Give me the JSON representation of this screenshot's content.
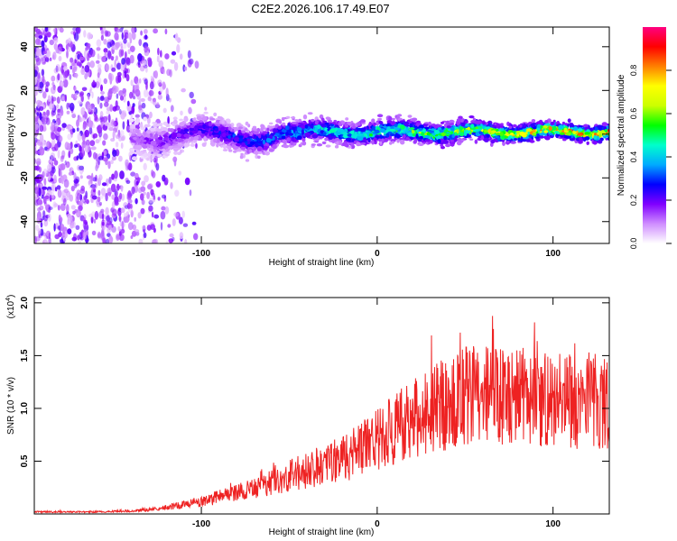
{
  "chart_data": [
    {
      "type": "heatmap",
      "title": "C2E2.2026.106.17.49.E07",
      "xlabel": "Height of straight line (km)",
      "ylabel": "Frequency (Hz)",
      "xlim": [
        -195,
        132
      ],
      "ylim": [
        -50,
        49
      ],
      "xticks": [
        -100,
        0,
        100
      ],
      "xtick_labels": [
        "-100",
        "0",
        "100"
      ],
      "yticks": [
        -40,
        -20,
        0,
        20,
        40
      ],
      "ytick_labels": [
        "-40",
        "-20",
        "0",
        "20",
        "40"
      ],
      "colorbar": {
        "label": "Normalized spectral amplitude",
        "range": [
          0.0,
          1.0
        ],
        "ticks": [
          0.0,
          0.2,
          0.4,
          0.6,
          0.8
        ],
        "tick_labels": [
          "0.0",
          "0.2",
          "0.4",
          "0.6",
          "0.8"
        ],
        "colormap": [
          "#ffffff",
          "#cf8dff",
          "#8000ff",
          "#0000ff",
          "#00aaff",
          "#00ffcc",
          "#00ff00",
          "#ccff00",
          "#ffff00",
          "#ff8000",
          "#ff0000",
          "#ff0080"
        ]
      },
      "features": [
        {
          "name": "noisy-region",
          "x_range": [
            -195,
            -120
          ],
          "freq_range": [
            -50,
            49
          ],
          "amplitude": 0.12
        },
        {
          "name": "signal-band",
          "x_range": [
            -140,
            132
          ],
          "center_freq_hz": 1,
          "amplitude_start": 0.15,
          "amplitude_end": 0.9
        }
      ]
    },
    {
      "type": "line",
      "xlabel": "Height of straight line (km)",
      "ylabel": "SNR (10 * v/v)",
      "yscale_label": "(x10",
      "yscale_exponent": "4",
      "yscale_suffix": ")",
      "xlim": [
        -195,
        132
      ],
      "ylim": [
        0.0,
        2.05
      ],
      "xticks": [
        -100,
        0,
        100
      ],
      "xtick_labels": [
        "-100",
        "0",
        "100"
      ],
      "yticks": [
        0.5,
        1.0,
        1.5,
        2.0
      ],
      "ytick_labels": [
        "0.5",
        "1.0",
        "1.5",
        "2.0"
      ],
      "series": [
        {
          "name": "SNR",
          "color": "#ee2222",
          "x": [
            -195,
            -180,
            -160,
            -140,
            -130,
            -120,
            -110,
            -100,
            -90,
            -80,
            -70,
            -60,
            -50,
            -40,
            -30,
            -20,
            -10,
            0,
            10,
            20,
            30,
            40,
            50,
            60,
            70,
            80,
            90,
            100,
            110,
            120,
            132
          ],
          "y": [
            0.02,
            0.02,
            0.02,
            0.03,
            0.04,
            0.06,
            0.09,
            0.12,
            0.16,
            0.2,
            0.24,
            0.3,
            0.36,
            0.42,
            0.47,
            0.52,
            0.6,
            0.7,
            0.8,
            0.9,
            1.0,
            1.05,
            1.12,
            1.15,
            1.1,
            1.12,
            1.08,
            1.1,
            1.06,
            1.08,
            1.05
          ]
        }
      ]
    }
  ]
}
